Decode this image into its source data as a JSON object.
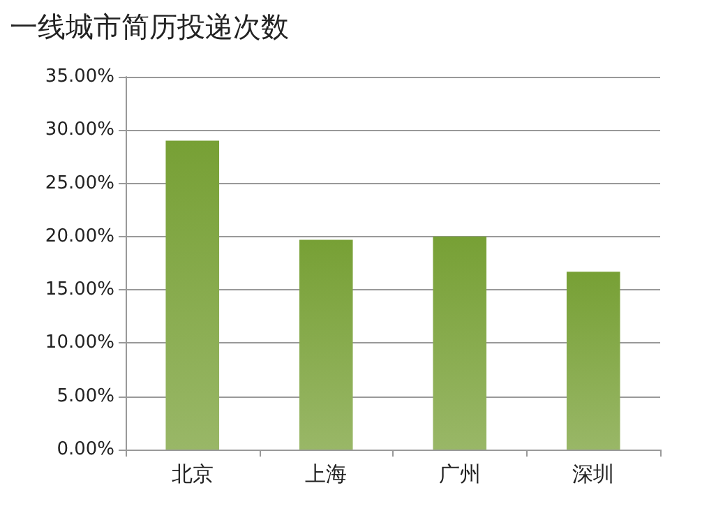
{
  "chart_data": {
    "type": "bar",
    "title": "一线城市简历投递次数",
    "categories": [
      "北京",
      "上海",
      "广州",
      "深圳"
    ],
    "values": [
      29.0,
      19.7,
      20.0,
      16.7
    ],
    "color": "#77a035",
    "ylim": [
      0,
      35
    ],
    "yticks": [
      {
        "value": 0,
        "label": "0.00%"
      },
      {
        "value": 5,
        "label": "5.00%"
      },
      {
        "value": 10,
        "label": "10.00%"
      },
      {
        "value": 15,
        "label": "15.00%"
      },
      {
        "value": 20,
        "label": "20.00%"
      },
      {
        "value": 25,
        "label": "25.00%"
      },
      {
        "value": 30,
        "label": "30.00%"
      },
      {
        "value": 35,
        "label": "35.00%"
      }
    ],
    "grid": "y"
  }
}
